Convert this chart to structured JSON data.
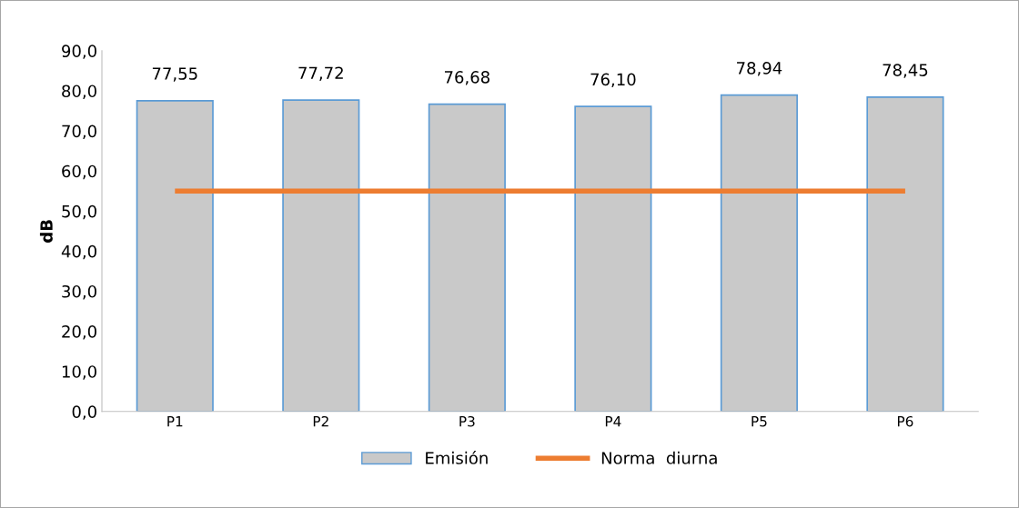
{
  "chart_data": {
    "type": "bar",
    "ylabel": "dB",
    "categories": [
      "P1",
      "P2",
      "P3",
      "P4",
      "P5",
      "P6"
    ],
    "series": [
      {
        "name": "Emisión",
        "color": "#c9c9c9",
        "values": [
          77.55,
          77.72,
          76.68,
          76.1,
          78.94,
          78.45
        ],
        "value_labels": [
          "77,55",
          "77,72",
          "76,68",
          "76,10",
          "78,94",
          "78,45"
        ]
      },
      {
        "name": "Norma  diurna",
        "type": "line",
        "color": "#ed7d31",
        "values": [
          55,
          55,
          55,
          55,
          55,
          55
        ]
      }
    ],
    "ylim": [
      0,
      90
    ],
    "yticks": [
      {
        "value": 0,
        "label": "0,0"
      },
      {
        "value": 10,
        "label": "10,0"
      },
      {
        "value": 20,
        "label": "20,0"
      },
      {
        "value": 30,
        "label": "30,0"
      },
      {
        "value": 40,
        "label": "40,0"
      },
      {
        "value": 50,
        "label": "50,0"
      },
      {
        "value": 60,
        "label": "60,0"
      },
      {
        "value": 70,
        "label": "70,0"
      },
      {
        "value": 80,
        "label": "80,0"
      },
      {
        "value": 90,
        "label": "90,0"
      }
    ],
    "grid": false,
    "legend": "bottom"
  }
}
